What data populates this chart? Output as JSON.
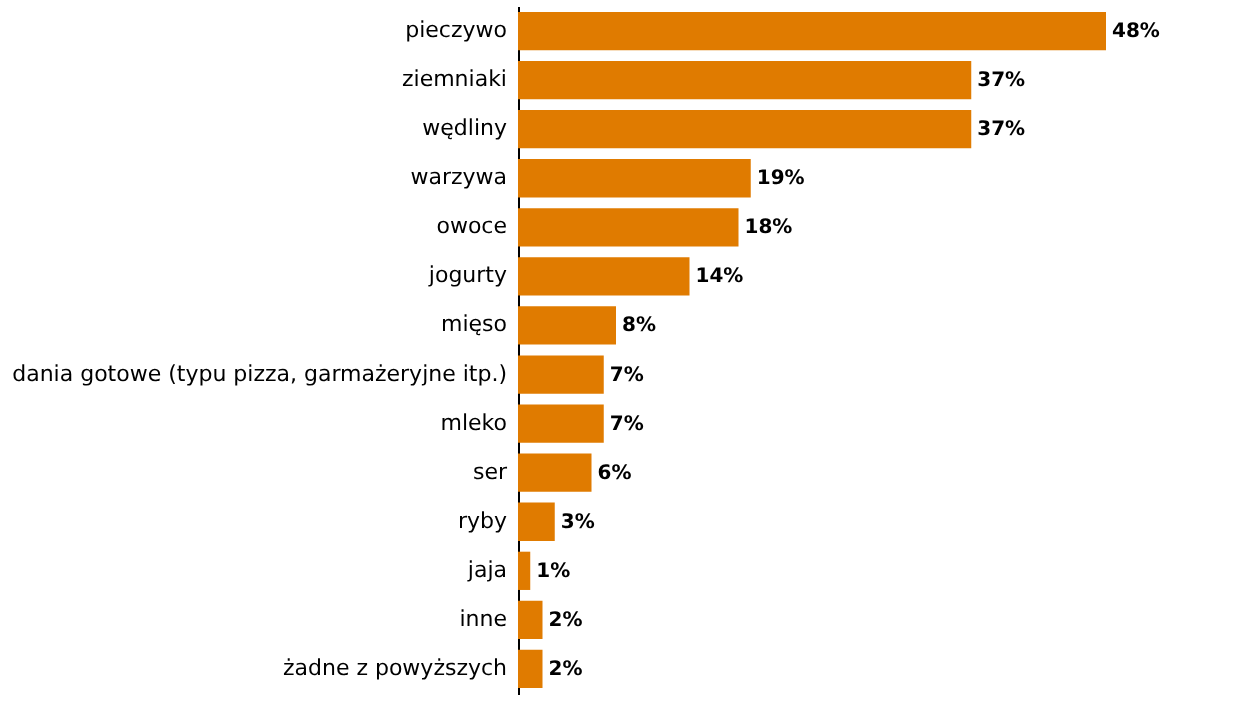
{
  "chart_data": {
    "type": "bar",
    "orientation": "horizontal",
    "categories": [
      "pieczywo",
      "ziemniaki",
      "wędliny",
      "warzywa",
      "owoce",
      "jogurty",
      "mięso",
      "dania gotowe (typu pizza, garmażeryjne itp.)",
      "mleko",
      "ser",
      "ryby",
      "jaja",
      "inne",
      "żadne z powyższych"
    ],
    "values": [
      48,
      37,
      37,
      19,
      18,
      14,
      8,
      7,
      7,
      6,
      3,
      1,
      2,
      2
    ],
    "value_labels": [
      "48%",
      "37%",
      "37%",
      "19%",
      "18%",
      "14%",
      "8%",
      "7%",
      "7%",
      "6%",
      "3%",
      "1%",
      "2%",
      "2%"
    ],
    "color": "#e07b00",
    "tick_labels": "y"
  }
}
